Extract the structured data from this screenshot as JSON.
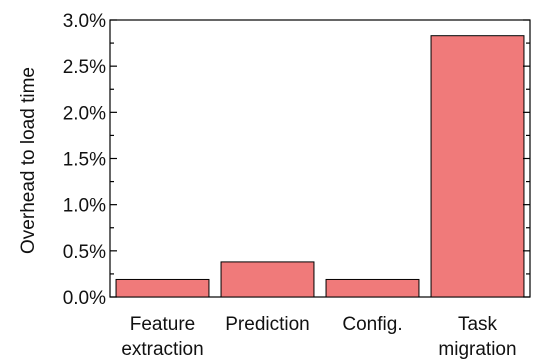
{
  "chart_data": {
    "type": "bar",
    "categories": [
      [
        "Feature",
        "extraction"
      ],
      [
        "Prediction"
      ],
      [
        "Config."
      ],
      [
        "Task",
        "migration"
      ]
    ],
    "values": [
      0.0019,
      0.0038,
      0.0019,
      0.0283
    ],
    "title": "",
    "xlabel": "",
    "ylabel": "Overhead to load time",
    "ylim": [
      0,
      0.03
    ],
    "yticks": [
      0,
      0.005,
      0.01,
      0.015,
      0.02,
      0.025,
      0.03
    ],
    "ytick_labels": [
      "0.0%",
      "0.5%",
      "1.0%",
      "1.5%",
      "2.0%",
      "2.5%",
      "3.0%"
    ],
    "bar_color": "#f07a7a",
    "grid": false,
    "legend": "none"
  }
}
